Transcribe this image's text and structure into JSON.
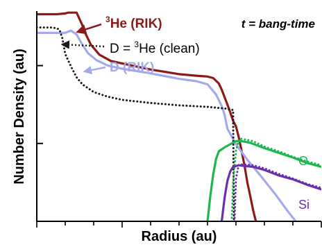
{
  "chart_data": {
    "type": "line",
    "xlabel": "Radius (au)",
    "ylabel": "Number Density (au)",
    "annotation": "t = bang-time",
    "axis_scale": {
      "x": "linear",
      "y": "log"
    },
    "xlim": [
      0,
      100
    ],
    "ylim": [
      0,
      2.7
    ],
    "x_tick_count": 11,
    "x_labeled_ticks": [],
    "y_tick_decades": [
      1,
      2
    ],
    "y_tick_labels": [],
    "grid": false,
    "legend": "inline labels",
    "series": [
      {
        "name": "³He (RIK)",
        "label_parts": {
          "sup": "3",
          "text": "He (RIK)"
        },
        "color": "#8b1a1a",
        "style": "solid",
        "points": [
          [
            0,
            2.66
          ],
          [
            7,
            2.66
          ],
          [
            10,
            2.67
          ],
          [
            11,
            2.68
          ],
          [
            14,
            2.68
          ],
          [
            16,
            2.52
          ],
          [
            17,
            2.42
          ],
          [
            19,
            2.27
          ],
          [
            22,
            2.14
          ],
          [
            26,
            2.06
          ],
          [
            31,
            2.02
          ],
          [
            40,
            1.95
          ],
          [
            50,
            1.89
          ],
          [
            56,
            1.87
          ],
          [
            60,
            1.86
          ],
          [
            62,
            1.84
          ],
          [
            64,
            1.77
          ],
          [
            65,
            1.69
          ],
          [
            67,
            1.5
          ],
          [
            68,
            1.4
          ],
          [
            69,
            1.29
          ],
          [
            70,
            1.22
          ],
          [
            71,
            1.08
          ],
          [
            72,
            0.9
          ],
          [
            73,
            0.72
          ],
          [
            74,
            0.5
          ],
          [
            75,
            0.33
          ],
          [
            76,
            0.15
          ],
          [
            77,
            0.0
          ]
        ]
      },
      {
        "name": "D (RIK)",
        "color": "#a4a9ee",
        "style": "solid",
        "points": [
          [
            0,
            2.42
          ],
          [
            10,
            2.42
          ],
          [
            12,
            2.45
          ],
          [
            14,
            2.4
          ],
          [
            16,
            2.27
          ],
          [
            18,
            2.16
          ],
          [
            21,
            2.07
          ],
          [
            25,
            2.0
          ],
          [
            30,
            1.96
          ],
          [
            40,
            1.9
          ],
          [
            50,
            1.83
          ],
          [
            56,
            1.8
          ],
          [
            60,
            1.76
          ],
          [
            63,
            1.63
          ],
          [
            65,
            1.48
          ],
          [
            66,
            1.37
          ],
          [
            67,
            1.19
          ],
          [
            70,
            0.99
          ],
          [
            74,
            0.79
          ],
          [
            79,
            0.57
          ],
          [
            84,
            0.34
          ],
          [
            88,
            0.14
          ],
          [
            91,
            0.0
          ]
        ]
      },
      {
        "name": "D = ³He (clean)",
        "label_parts": {
          "prefix": "D = ",
          "sup": "3",
          "text": "He (clean)"
        },
        "color": "#1a1a1a",
        "style": "dotted",
        "points": [
          [
            0,
            2.49
          ],
          [
            5,
            2.49
          ],
          [
            7,
            2.48
          ],
          [
            8,
            2.46
          ],
          [
            9,
            2.35
          ],
          [
            10,
            2.15
          ],
          [
            12,
            1.99
          ],
          [
            14,
            1.85
          ],
          [
            16,
            1.76
          ],
          [
            20,
            1.66
          ],
          [
            25,
            1.6
          ],
          [
            30,
            1.56
          ],
          [
            40,
            1.52
          ],
          [
            50,
            1.49
          ],
          [
            60,
            1.47
          ],
          [
            66,
            1.45
          ],
          [
            69,
            1.43
          ],
          [
            69.3,
            0.0
          ]
        ]
      },
      {
        "name": "O",
        "color": "#1db74f",
        "style": "solid",
        "points": [
          [
            60,
            0.0
          ],
          [
            61,
            0.33
          ],
          [
            62,
            0.6
          ],
          [
            63,
            0.8
          ],
          [
            64,
            0.9
          ],
          [
            66,
            0.95
          ],
          [
            68,
            0.99
          ],
          [
            70,
            1.03
          ],
          [
            72,
            1.03
          ],
          [
            75,
            1.01
          ],
          [
            80,
            0.94
          ],
          [
            85,
            0.88
          ],
          [
            90,
            0.82
          ],
          [
            95,
            0.75
          ],
          [
            100,
            0.7
          ]
        ]
      },
      {
        "name": "O (clean)",
        "color": "#1db74f",
        "style": "dotted",
        "points": [
          [
            68.5,
            0.0
          ],
          [
            69,
            0.5
          ],
          [
            70,
            0.9
          ],
          [
            71,
            1.05
          ],
          [
            72,
            1.06
          ],
          [
            76,
            1.03
          ],
          [
            80,
            0.96
          ],
          [
            85,
            0.9
          ],
          [
            90,
            0.83
          ],
          [
            95,
            0.77
          ],
          [
            100,
            0.72
          ]
        ]
      },
      {
        "name": "Si",
        "color": "#6b2fae",
        "style": "solid",
        "points": [
          [
            65,
            0.0
          ],
          [
            66,
            0.3
          ],
          [
            67,
            0.52
          ],
          [
            68,
            0.64
          ],
          [
            69,
            0.7
          ],
          [
            71,
            0.72
          ],
          [
            73,
            0.71
          ],
          [
            76,
            0.7
          ],
          [
            80,
            0.66
          ],
          [
            85,
            0.59
          ],
          [
            90,
            0.54
          ],
          [
            95,
            0.47
          ],
          [
            100,
            0.41
          ]
        ]
      },
      {
        "name": "Si (clean)",
        "color": "#6b2fae",
        "style": "dotted",
        "points": [
          [
            69.5,
            0.0
          ],
          [
            70,
            0.55
          ],
          [
            71,
            0.73
          ],
          [
            73,
            0.73
          ],
          [
            76,
            0.72
          ],
          [
            80,
            0.68
          ],
          [
            85,
            0.61
          ],
          [
            90,
            0.55
          ],
          [
            95,
            0.48
          ],
          [
            100,
            0.43
          ]
        ]
      }
    ]
  }
}
